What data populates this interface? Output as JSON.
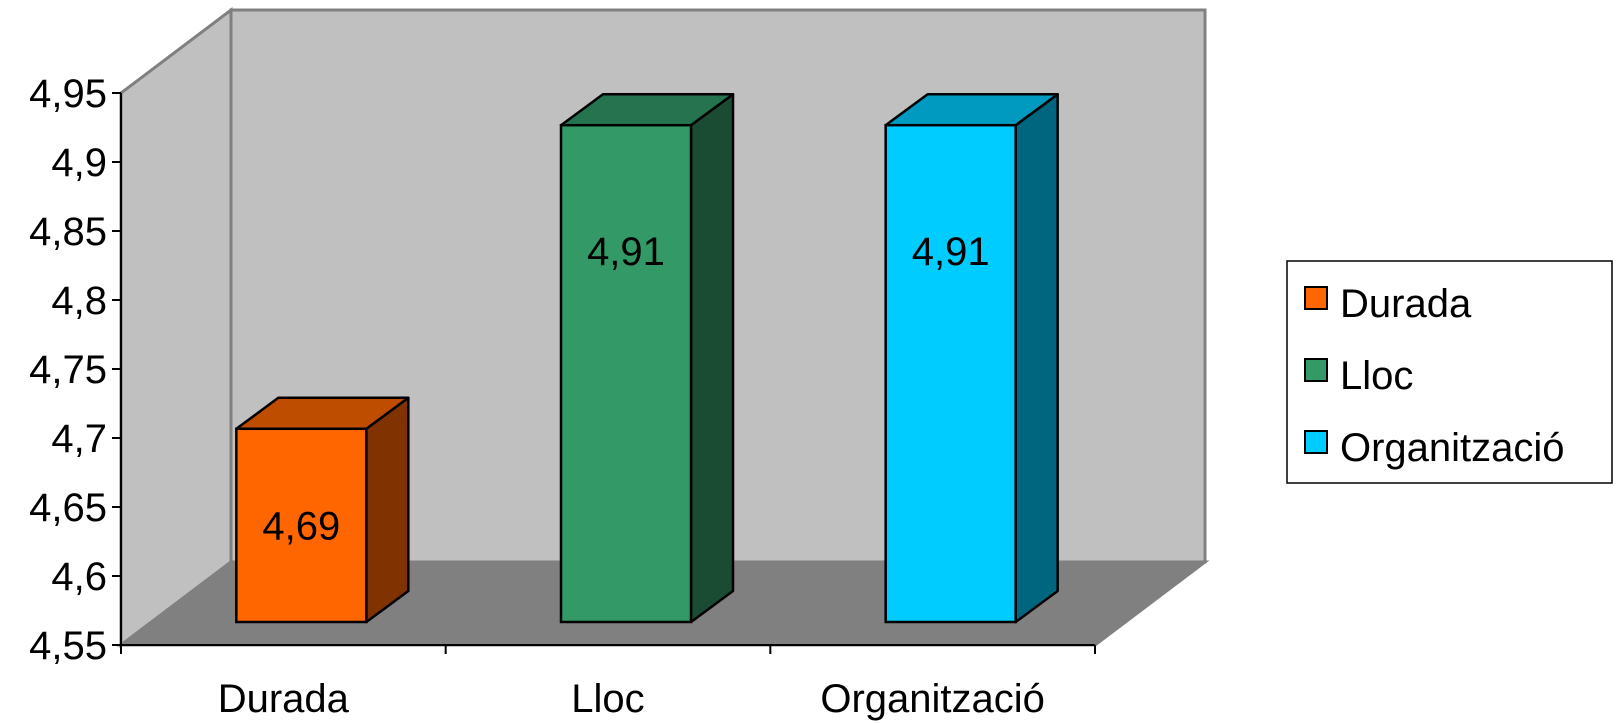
{
  "chart_data": {
    "type": "bar",
    "categories": [
      "Durada",
      "Lloc",
      "Organització"
    ],
    "values": [
      4.69,
      4.91,
      4.91
    ],
    "data_labels": [
      "4,69",
      "4,91",
      "4,91"
    ],
    "ylim": [
      4.55,
      4.95
    ],
    "y_ticks": [
      4.55,
      4.6,
      4.65,
      4.7,
      4.75,
      4.8,
      4.85,
      4.9,
      4.95
    ],
    "y_tick_labels": [
      "4,55",
      "4,6",
      "4,65",
      "4,7",
      "4,75",
      "4,8",
      "4,85",
      "4,9",
      "4,95"
    ],
    "legend": [
      "Durada",
      "Lloc",
      "Organització"
    ],
    "legend_position": "right",
    "grid": false,
    "style": "3d",
    "colors": {
      "front": [
        "#ff6600",
        "#339966",
        "#00ccff"
      ],
      "top": [
        "#bf4d00",
        "#267350",
        "#0099bf"
      ],
      "side": [
        "#803300",
        "#1a4c33",
        "#006680"
      ],
      "wall": "#c0c0c0",
      "floor": "#808080"
    }
  }
}
